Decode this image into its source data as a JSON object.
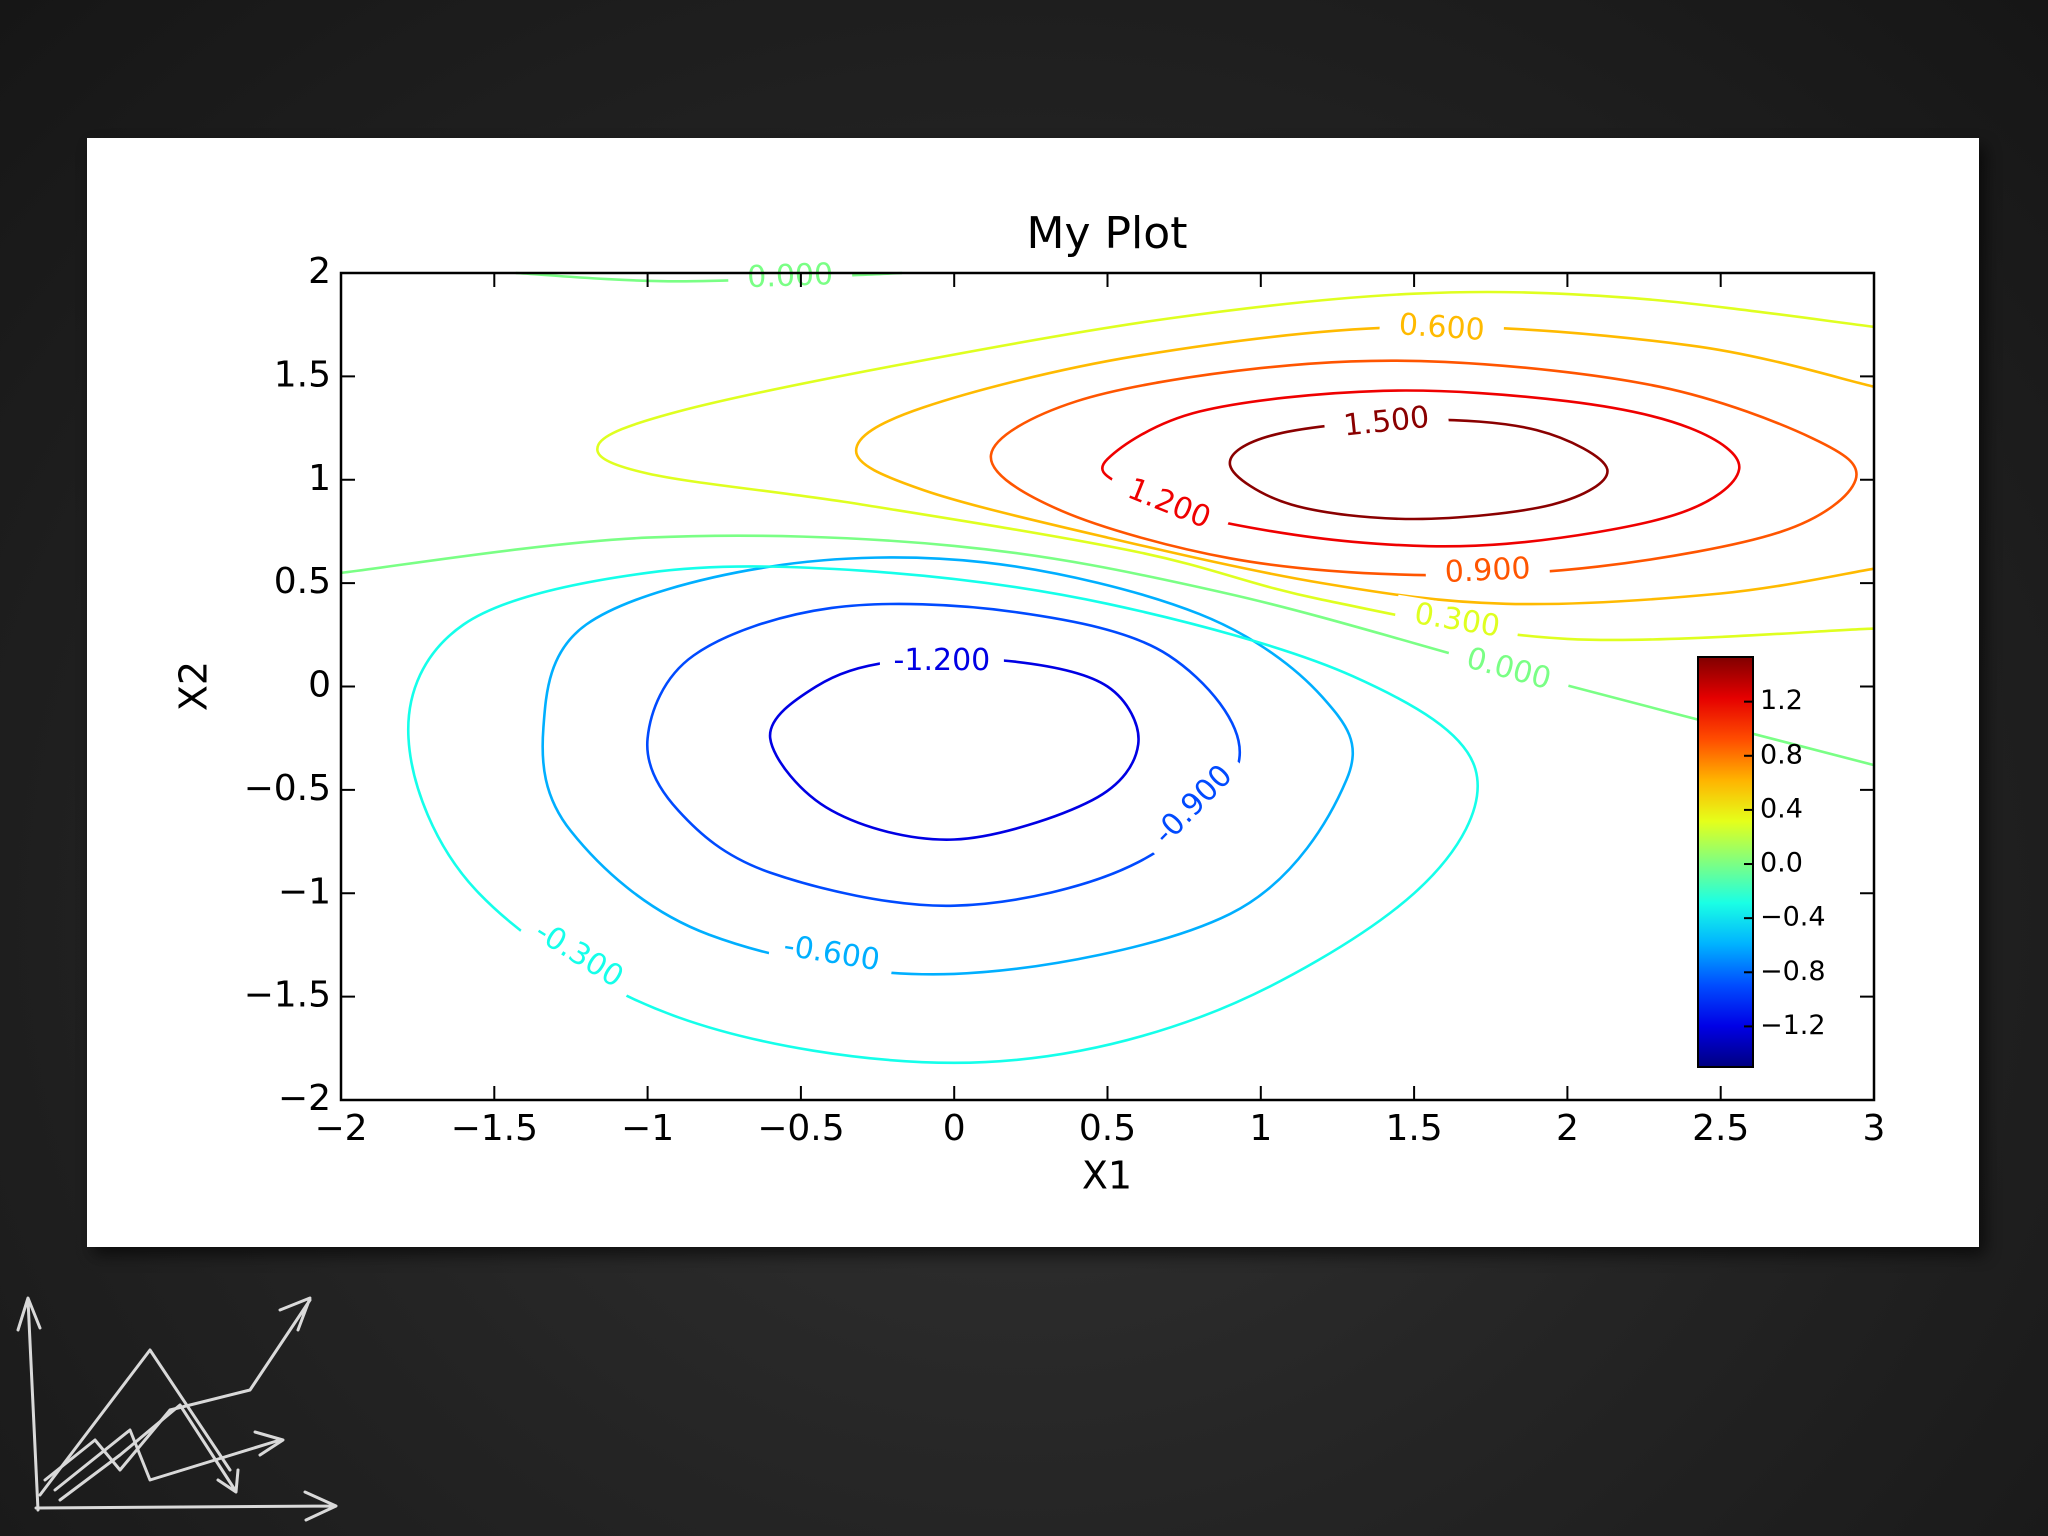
{
  "chart_data": {
    "type": "contour",
    "title": "My Plot",
    "x_label": "X1",
    "y_label": "X2",
    "xlim": [
      -2,
      3
    ],
    "ylim": [
      -2,
      2
    ],
    "xticks": [
      {
        "value": -2,
        "label": "−2"
      },
      {
        "value": -1.5,
        "label": "−1.5"
      },
      {
        "value": -1,
        "label": "−1"
      },
      {
        "value": -0.5,
        "label": "−0.5"
      },
      0,
      0.5,
      1,
      1.5,
      2,
      2.5,
      3
    ],
    "yticks": [
      {
        "value": -2,
        "label": "−2"
      },
      {
        "value": -1.5,
        "label": "−1.5"
      },
      {
        "value": -1,
        "label": "−1"
      },
      {
        "value": -0.5,
        "label": "−0.5"
      },
      0,
      0.5,
      1,
      1.5,
      2
    ],
    "colormap": "jet",
    "clim": [
      -1.5,
      1.53
    ],
    "colorbar_ticks": [
      {
        "value": 1.2,
        "label": "1.2"
      },
      {
        "value": 0.8,
        "label": "0.8"
      },
      {
        "value": 0.4,
        "label": "0.4"
      },
      {
        "value": 0.0,
        "label": "0.0"
      },
      {
        "value": -0.4,
        "label": "−0.4"
      },
      {
        "value": -0.8,
        "label": "−0.8"
      },
      {
        "value": -1.2,
        "label": "−1.2"
      }
    ],
    "contours": [
      {
        "level": -1.2,
        "label": "-1.200",
        "closed": true,
        "x": [
          -0.6,
          -0.45,
          -0.2,
          0.2,
          0.5,
          0.6,
          0.45,
          0.0,
          -0.4
        ],
        "y": [
          -0.25,
          0.0,
          0.12,
          0.12,
          0.0,
          -0.28,
          -0.55,
          -0.74,
          -0.6
        ]
      },
      {
        "level": -0.9,
        "label": "-0.900",
        "closed": true,
        "x": [
          -1.0,
          -0.85,
          -0.4,
          0.2,
          0.7,
          0.93,
          0.6,
          0.0,
          -0.6,
          -0.9
        ],
        "y": [
          -0.25,
          0.15,
          0.38,
          0.36,
          0.15,
          -0.35,
          -0.85,
          -1.06,
          -0.9,
          -0.6
        ]
      },
      {
        "level": -0.6,
        "label": "-0.600",
        "closed": true,
        "x": [
          -1.34,
          -1.2,
          -0.6,
          0.1,
          0.8,
          1.2,
          1.28,
          0.9,
          0.0,
          -0.8,
          -1.25
        ],
        "y": [
          -0.2,
          0.3,
          0.58,
          0.6,
          0.35,
          -0.05,
          -0.45,
          -1.1,
          -1.39,
          -1.2,
          -0.7
        ]
      },
      {
        "level": -0.3,
        "label": "-0.300",
        "closed": true,
        "x": [
          -1.78,
          -1.6,
          -1.0,
          -0.3,
          0.5,
          1.3,
          1.7,
          1.5,
          0.8,
          0.0,
          -0.9,
          -1.55
        ],
        "y": [
          -0.25,
          0.3,
          0.55,
          0.56,
          0.4,
          0.05,
          -0.4,
          -1.0,
          -1.6,
          -1.82,
          -1.6,
          -1.0
        ]
      },
      {
        "level": 0.0,
        "label": "0.000",
        "closed": false,
        "x": [
          -1.43,
          -0.9,
          -0.17,
          null,
          -2.0,
          -1.0,
          0.0,
          0.89,
          1.91,
          3.0
        ],
        "y": [
          2.0,
          1.96,
          2.0,
          null,
          0.55,
          0.72,
          0.68,
          0.45,
          0.04,
          -0.38
        ]
      },
      {
        "level": 0.3,
        "label": "0.300",
        "closed": false,
        "x": [
          3.0,
          2.2,
          1.5,
          0.7,
          -0.2,
          -0.9,
          -1.16,
          -1.0,
          -0.3,
          0.6,
          1.2,
          2.0,
          3.0
        ],
        "y": [
          1.74,
          1.88,
          1.9,
          1.78,
          1.55,
          1.33,
          1.17,
          1.03,
          0.88,
          0.65,
          0.42,
          0.23,
          0.28
        ]
      },
      {
        "level": 0.6,
        "label": "0.600",
        "closed": false,
        "x": [
          3.0,
          2.4,
          1.5,
          0.6,
          -0.1,
          -0.32,
          -0.1,
          0.5,
          1.2,
          1.8,
          2.5,
          3.0
        ],
        "y": [
          1.45,
          1.65,
          1.74,
          1.6,
          1.35,
          1.14,
          0.95,
          0.72,
          0.5,
          0.4,
          0.45,
          0.57
        ]
      },
      {
        "level": 0.9,
        "label": "0.900",
        "closed": true,
        "x": [
          0.12,
          0.4,
          1.0,
          1.6,
          2.3,
          2.8,
          2.94,
          2.7,
          2.1,
          1.5,
          0.9,
          0.35
        ],
        "y": [
          1.12,
          1.38,
          1.54,
          1.57,
          1.45,
          1.2,
          1.0,
          0.75,
          0.58,
          0.54,
          0.62,
          0.85
        ]
      },
      {
        "level": 1.2,
        "label": "1.200",
        "closed": true,
        "x": [
          0.5,
          0.8,
          1.4,
          2.0,
          2.4,
          2.56,
          2.35,
          1.8,
          1.3,
          0.8,
          0.55
        ],
        "y": [
          1.1,
          1.33,
          1.43,
          1.38,
          1.25,
          1.05,
          0.83,
          0.69,
          0.7,
          0.82,
          0.97
        ]
      },
      {
        "level": 1.5,
        "label": "1.500",
        "closed": true,
        "x": [
          0.9,
          1.05,
          1.5,
          1.9,
          2.13,
          1.95,
          1.5,
          1.1
        ],
        "y": [
          1.07,
          1.22,
          1.29,
          1.24,
          1.05,
          0.88,
          0.81,
          0.88
        ]
      }
    ]
  }
}
